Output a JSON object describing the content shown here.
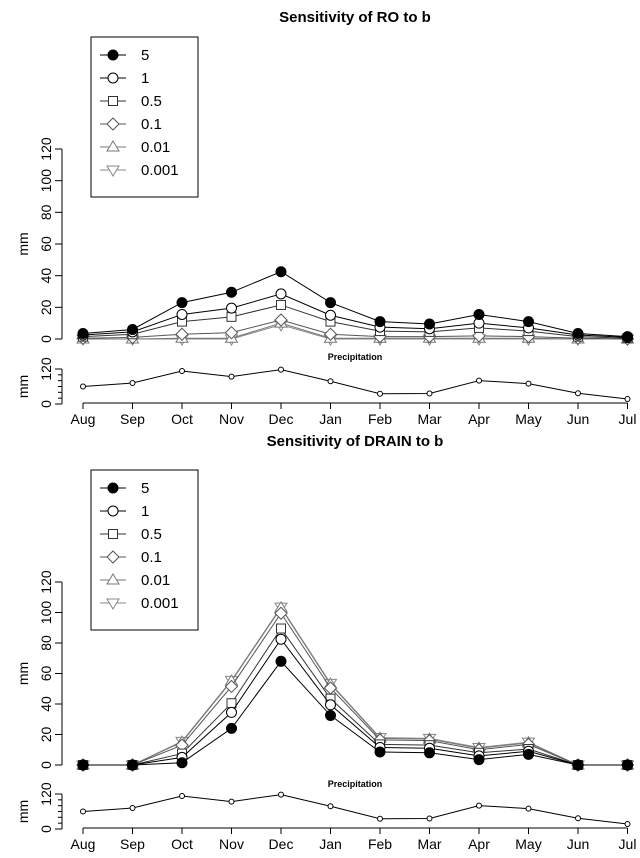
{
  "months": [
    "Aug",
    "Sep",
    "Oct",
    "Nov",
    "Dec",
    "Jan",
    "Feb",
    "Mar",
    "Apr",
    "May",
    "Jun",
    "Jul"
  ],
  "legend_labels": [
    "5",
    "1",
    "0.5",
    "0.1",
    "0.01",
    "0.001"
  ],
  "chart_data": [
    {
      "type": "line",
      "title": "Sensitivity of RO to b",
      "ylabel": "mm",
      "ylim": [
        0,
        120
      ],
      "yticks": [
        0,
        20,
        40,
        60,
        80,
        100,
        120
      ],
      "categories": [
        "Aug",
        "Sep",
        "Oct",
        "Nov",
        "Dec",
        "Jan",
        "Feb",
        "Mar",
        "Apr",
        "May",
        "Jun",
        "Jul"
      ],
      "series": [
        {
          "name": "5",
          "values": [
            3.5,
            6,
            23,
            29.5,
            42.5,
            23,
            11,
            9.5,
            15.5,
            11,
            3.5,
            1.5
          ]
        },
        {
          "name": "1",
          "values": [
            2.5,
            4.5,
            15.5,
            19.5,
            28.5,
            15,
            7.5,
            6.5,
            10,
            7,
            2.5,
            1
          ]
        },
        {
          "name": "0.5",
          "values": [
            1.5,
            3,
            11,
            14,
            21.5,
            11,
            5,
            4.5,
            7,
            5,
            1.5,
            0.5
          ]
        },
        {
          "name": "0.1",
          "values": [
            0.5,
            1,
            3,
            4,
            12,
            3,
            1.5,
            1.5,
            2,
            1.5,
            0.5,
            0
          ]
        },
        {
          "name": "0.01",
          "values": [
            0,
            0,
            0.5,
            0.5,
            10,
            0.5,
            0.5,
            0.5,
            0.5,
            0.5,
            0,
            0
          ]
        },
        {
          "name": "0.001",
          "values": [
            0,
            0,
            0,
            0,
            9,
            0,
            0,
            0,
            0,
            0,
            0,
            0
          ]
        }
      ],
      "legend_position": "top-left"
    },
    {
      "type": "line",
      "title": "Precipitation",
      "ylabel": "mm",
      "ylim": [
        0,
        120
      ],
      "yticks": [
        0,
        120
      ],
      "categories": [
        "Aug",
        "Sep",
        "Oct",
        "Nov",
        "Dec",
        "Jan",
        "Feb",
        "Mar",
        "Apr",
        "May",
        "Jun",
        "Jul"
      ],
      "series": [
        {
          "values": [
            60,
            72,
            113,
            94,
            118,
            78,
            35,
            36,
            80,
            70,
            37,
            17
          ]
        }
      ]
    },
    {
      "type": "line",
      "title": "Sensitivity of DRAIN to b",
      "ylabel": "mm",
      "ylim": [
        0,
        120
      ],
      "yticks": [
        0,
        20,
        40,
        60,
        80,
        100,
        120
      ],
      "categories": [
        "Aug",
        "Sep",
        "Oct",
        "Nov",
        "Dec",
        "Jan",
        "Feb",
        "Mar",
        "Apr",
        "May",
        "Jun",
        "Jul"
      ],
      "series": [
        {
          "name": "5",
          "values": [
            0,
            0,
            1.5,
            24,
            68,
            32.5,
            8.5,
            8,
            3.5,
            7,
            0,
            0
          ]
        },
        {
          "name": "1",
          "values": [
            0,
            0,
            5,
            34.5,
            82.5,
            39.5,
            11.5,
            11,
            6,
            9,
            0,
            0
          ]
        },
        {
          "name": "0.5",
          "values": [
            0,
            0,
            7.5,
            40.5,
            89.5,
            43.5,
            13.5,
            13,
            8,
            10.5,
            0,
            0
          ]
        },
        {
          "name": "0.1",
          "values": [
            0,
            0,
            13,
            51.5,
            99.5,
            50.5,
            16.5,
            16,
            10,
            13.5,
            0,
            0
          ]
        },
        {
          "name": "0.01",
          "values": [
            0,
            0,
            15,
            55,
            103,
            53,
            17.5,
            17,
            11,
            14.5,
            0,
            0
          ]
        },
        {
          "name": "0.001",
          "values": [
            0,
            0,
            15.5,
            55.5,
            103.5,
            53.5,
            18,
            17.5,
            11.5,
            15,
            0,
            0
          ]
        }
      ],
      "legend_position": "top-left"
    },
    {
      "type": "line",
      "title": "Precipitation",
      "ylabel": "mm",
      "ylim": [
        0,
        120
      ],
      "yticks": [
        0,
        120
      ],
      "categories": [
        "Aug",
        "Sep",
        "Oct",
        "Nov",
        "Dec",
        "Jan",
        "Feb",
        "Mar",
        "Apr",
        "May",
        "Jun",
        "Jul"
      ],
      "series": [
        {
          "values": [
            60,
            72,
            113,
            94,
            118,
            78,
            35,
            36,
            80,
            70,
            37,
            17
          ]
        }
      ]
    }
  ],
  "styles": {
    "series_colors": [
      "#000000",
      "#000000",
      "#333333",
      "#555555",
      "#777777",
      "#888888"
    ],
    "line_color": "#000000"
  }
}
